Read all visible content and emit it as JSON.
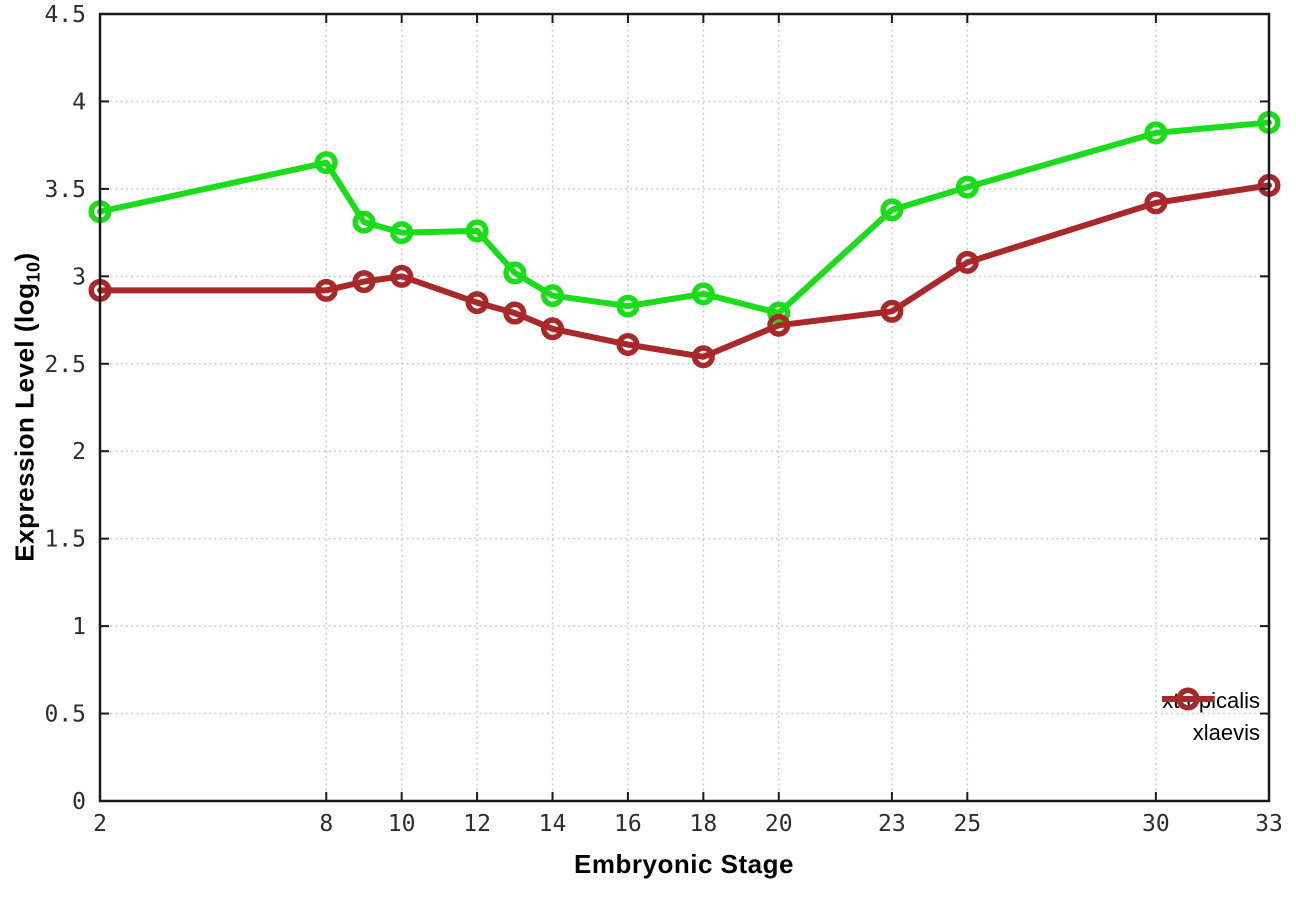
{
  "chart_data": {
    "type": "line",
    "title": "",
    "xlabel": "Embryonic Stage",
    "ylabel": "Expression Level (log10)",
    "ylabel_main": "Expression Level (log",
    "ylabel_sub": "10",
    "ylabel_suffix": ")",
    "x": [
      2,
      8,
      9,
      10,
      12,
      13,
      14,
      16,
      18,
      20,
      23,
      25,
      30,
      33
    ],
    "series": [
      {
        "name": "xtropicalis",
        "color": "#18dd18",
        "marker": "open-circle",
        "values": [
          3.37,
          3.65,
          3.31,
          3.25,
          3.26,
          3.02,
          2.89,
          2.83,
          2.9,
          2.79,
          3.38,
          3.51,
          3.82,
          3.88
        ]
      },
      {
        "name": "xlaevis",
        "color": "#a9282a",
        "marker": "open-circle",
        "values": [
          2.92,
          2.92,
          2.97,
          3.0,
          2.85,
          2.79,
          2.7,
          2.61,
          2.54,
          2.72,
          2.8,
          3.08,
          3.42,
          3.52
        ]
      }
    ],
    "x_ticks": [
      2,
      8,
      10,
      12,
      14,
      16,
      18,
      20,
      23,
      25,
      30,
      33
    ],
    "y_ticks": [
      0,
      0.5,
      1,
      1.5,
      2,
      2.5,
      3,
      3.5,
      4,
      4.5
    ],
    "xlim": [
      2,
      33
    ],
    "ylim": [
      0,
      4.5
    ],
    "grid": true,
    "grid_style": "dotted",
    "legend_position": "inside-bottom-right",
    "colors": {
      "border": "#1a1a1a",
      "grid": "#c9c9c9",
      "tick_text": "#2d2d2d",
      "background": "#ffffff"
    }
  }
}
